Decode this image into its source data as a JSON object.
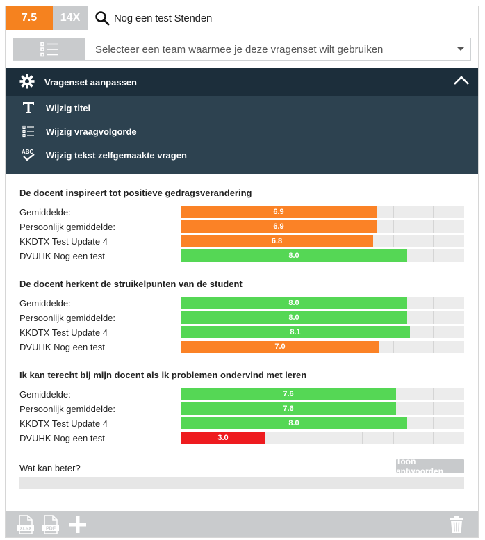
{
  "header": {
    "score": "7.5",
    "count": "14X",
    "title": "Nog een test Stenden"
  },
  "team_select": {
    "placeholder": "Selecteer een team waarmee je deze vragenset wilt gebruiken"
  },
  "settings": {
    "title": "Vragenset aanpassen",
    "items": [
      {
        "label": "Wijzig titel",
        "icon": "text-t-icon"
      },
      {
        "label": "Wijzig vraagvolgorde",
        "icon": "list-order-icon"
      },
      {
        "label": "Wijzig tekst zelfgemaakte vragen",
        "icon": "abc-spellcheck-icon"
      }
    ]
  },
  "colors": {
    "orange": "#fb8226",
    "green": "#55d755",
    "red": "#ee1b1f",
    "track": "#ececec",
    "panel": "#2d4250",
    "panel_head": "#1c2e3b"
  },
  "scale": {
    "min": 0,
    "max": 10
  },
  "questions": [
    {
      "title": "De docent inspireert tot positieve gedragsverandering",
      "rows": [
        {
          "label": "Gemiddelde:",
          "value": 6.9,
          "display": "6.9",
          "color": "orange"
        },
        {
          "label": "Persoonlijk gemiddelde:",
          "value": 6.9,
          "display": "6.9",
          "color": "orange"
        },
        {
          "label": "KKDTX Test Update 4",
          "value": 6.8,
          "display": "6.8",
          "color": "orange"
        },
        {
          "label": "DVUHK Nog een test",
          "value": 8.0,
          "display": "8.0",
          "color": "green"
        }
      ]
    },
    {
      "title": "De docent herkent de struikelpunten van de student",
      "rows": [
        {
          "label": "Gemiddelde:",
          "value": 8.0,
          "display": "8.0",
          "color": "green"
        },
        {
          "label": "Persoonlijk gemiddelde:",
          "value": 8.0,
          "display": "8.0",
          "color": "green"
        },
        {
          "label": "KKDTX Test Update 4",
          "value": 8.1,
          "display": "8.1",
          "color": "green"
        },
        {
          "label": "DVUHK Nog een test",
          "value": 7.0,
          "display": "7.0",
          "color": "orange"
        }
      ]
    },
    {
      "title": "Ik kan terecht bij mijn docent als ik problemen ondervind met leren",
      "rows": [
        {
          "label": "Gemiddelde:",
          "value": 7.6,
          "display": "7.6",
          "color": "green"
        },
        {
          "label": "Persoonlijk gemiddelde:",
          "value": 7.6,
          "display": "7.6",
          "color": "green"
        },
        {
          "label": "KKDTX Test Update 4",
          "value": 8.0,
          "display": "8.0",
          "color": "green"
        },
        {
          "label": "DVUHK Nog een test",
          "value": 3.0,
          "display": "3.0",
          "color": "red"
        }
      ]
    }
  ],
  "open_question": {
    "label": "Wat kan beter?",
    "button": "Toon antwoorden"
  },
  "footer": {
    "icons": [
      "xlsx-export-icon",
      "pdf-export-icon",
      "add-icon",
      "trash-icon"
    ],
    "xlsx_text": "XLSX",
    "pdf_text": "PDF"
  }
}
